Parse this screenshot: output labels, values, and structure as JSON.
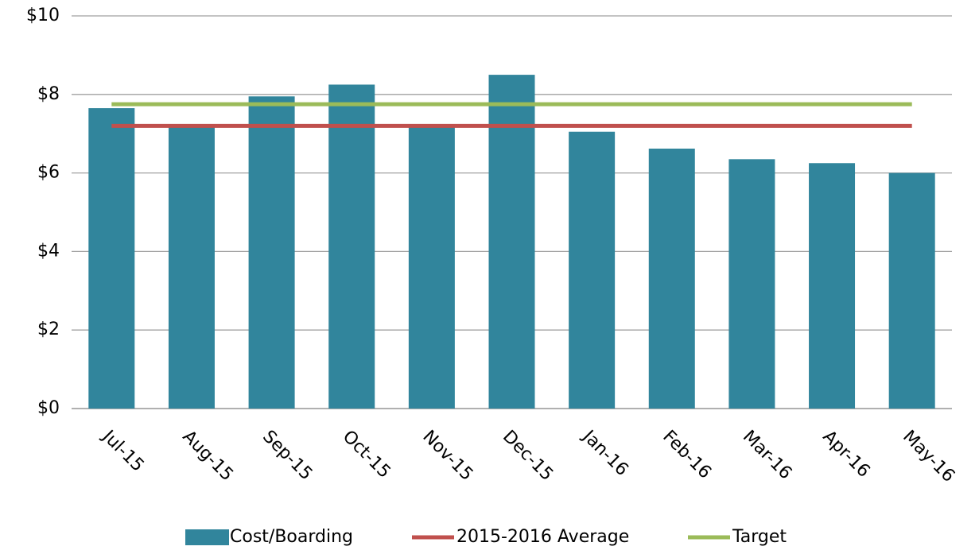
{
  "chart_data": {
    "type": "bar",
    "categories": [
      "Jul-15",
      "Aug-15",
      "Sep-15",
      "Oct-15",
      "Nov-15",
      "Dec-15",
      "Jan-16",
      "Feb-16",
      "Mar-16",
      "Apr-16",
      "May-16"
    ],
    "series": [
      {
        "name": "Cost/Boarding",
        "type": "bar",
        "color": "#31859c",
        "values": [
          7.65,
          7.2,
          7.95,
          8.25,
          7.2,
          8.5,
          7.05,
          6.62,
          6.35,
          6.25,
          6.0
        ]
      },
      {
        "name": "2015-2016 Average",
        "type": "line",
        "color": "#c0504d",
        "values": [
          7.2,
          7.2,
          7.2,
          7.2,
          7.2,
          7.2,
          7.2,
          7.2,
          7.2,
          7.2,
          7.2
        ]
      },
      {
        "name": "Target",
        "type": "line",
        "color": "#9bbb59",
        "values": [
          7.75,
          7.75,
          7.75,
          7.75,
          7.75,
          7.75,
          7.75,
          7.75,
          7.75,
          7.75,
          7.75
        ]
      }
    ],
    "ylim": [
      0,
      10
    ],
    "yticks": [
      {
        "value": 0,
        "label": "$0"
      },
      {
        "value": 2,
        "label": "$2"
      },
      {
        "value": 4,
        "label": "$4"
      },
      {
        "value": 6,
        "label": "$6"
      },
      {
        "value": 8,
        "label": "$8"
      },
      {
        "value": 10,
        "label": "$10"
      }
    ],
    "grid": true,
    "legend": "bottom"
  }
}
